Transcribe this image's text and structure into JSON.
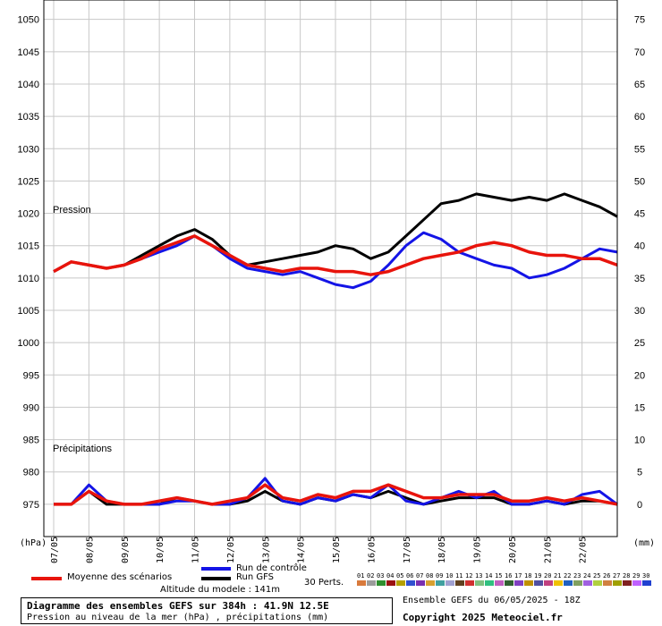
{
  "chart_data": {
    "type": "line",
    "title": "Diagramme des ensembles GEFS sur 384h : 41.9N 12.5E",
    "subtitle": "Pression au niveau de la mer (hPa) , précipitations (mm)",
    "run_info": "Ensemble GEFS du 06/05/2025 - 18Z",
    "copyright": "Copyright 2025 Meteociel.fr",
    "altitude": "Altitude du modele : 141m",
    "ylabel_left": "(hPa)",
    "ylabel_right": "(mm)",
    "label_pressure": "Pression",
    "label_precip": "Précipitations",
    "left_ticks": [
      "975",
      "980",
      "985",
      "990",
      "995",
      "1000",
      "1005",
      "1010",
      "1015",
      "1020",
      "1025",
      "1030",
      "1035",
      "1040",
      "1045",
      "1050"
    ],
    "right_ticks": [
      "0",
      "5",
      "10",
      "15",
      "20",
      "25",
      "30",
      "35",
      "40",
      "45",
      "50",
      "55",
      "60",
      "65",
      "70",
      "75"
    ],
    "xlim_hours": [
      0,
      384
    ],
    "x_dates": [
      "07/05",
      "08/05",
      "09/05",
      "10/05",
      "11/05",
      "12/05",
      "13/05",
      "14/05",
      "15/05",
      "16/05",
      "17/05",
      "18/05",
      "19/05",
      "20/05",
      "21/05",
      "22/05"
    ],
    "grid": true,
    "pressure_range": [
      970,
      1053
    ],
    "precip_range": [
      -5,
      78
    ],
    "series_colors": {
      "mean": "#e8140c",
      "control": "#1414e6",
      "gfs": "#000000"
    },
    "series": [
      {
        "name": "Moyenne des scénarios",
        "kind": "pressure",
        "x": [
          0,
          12,
          24,
          36,
          48,
          60,
          72,
          84,
          96,
          108,
          120,
          132,
          144,
          156,
          168,
          180,
          192,
          204,
          216,
          228,
          240,
          252,
          264,
          276,
          288,
          300,
          312,
          324,
          336,
          348,
          360,
          372,
          384
        ],
        "values": [
          1011,
          1012.5,
          1012,
          1011.5,
          1012,
          1013,
          1014.5,
          1015.5,
          1016.5,
          1015,
          1013.5,
          1012,
          1011.5,
          1011,
          1011.5,
          1011.5,
          1011,
          1011,
          1010.5,
          1011,
          1012,
          1013,
          1013.5,
          1014,
          1015,
          1015.5,
          1015,
          1014,
          1013.5,
          1013.5,
          1013,
          1013,
          1012
        ]
      },
      {
        "name": "Run de contrôle",
        "kind": "pressure",
        "x": [
          0,
          12,
          24,
          36,
          48,
          60,
          72,
          84,
          96,
          108,
          120,
          132,
          144,
          156,
          168,
          180,
          192,
          204,
          216,
          228,
          240,
          252,
          264,
          276,
          288,
          300,
          312,
          324,
          336,
          348,
          360,
          372,
          384
        ],
        "values": [
          1011,
          1012.5,
          1012,
          1011.5,
          1012,
          1013,
          1014,
          1015,
          1016.5,
          1015,
          1013,
          1011.5,
          1011,
          1010.5,
          1011,
          1010,
          1009,
          1008.5,
          1009.5,
          1012,
          1015,
          1017,
          1016,
          1014,
          1013,
          1012,
          1011.5,
          1010,
          1010.5,
          1011.5,
          1013,
          1014.5,
          1014
        ]
      },
      {
        "name": "Run GFS",
        "kind": "pressure",
        "x": [
          0,
          12,
          24,
          36,
          48,
          60,
          72,
          84,
          96,
          108,
          120,
          132,
          144,
          156,
          168,
          180,
          192,
          204,
          216,
          228,
          240,
          252,
          264,
          276,
          288,
          300,
          312,
          324,
          336,
          348,
          360,
          372,
          384
        ],
        "values": [
          1011,
          1012.5,
          1012,
          1011.5,
          1012,
          1013.5,
          1015,
          1016.5,
          1017.5,
          1016,
          1013.5,
          1012,
          1012.5,
          1013,
          1013.5,
          1014,
          1015,
          1014.5,
          1013,
          1014,
          1016.5,
          1019,
          1021.5,
          1022,
          1023,
          1022.5,
          1022,
          1022.5,
          1022,
          1023,
          1022,
          1021,
          1019.5
        ]
      },
      {
        "name": "Moyenne des scénarios",
        "kind": "precip",
        "x": [
          0,
          12,
          24,
          36,
          48,
          60,
          72,
          84,
          96,
          108,
          120,
          132,
          144,
          156,
          168,
          180,
          192,
          204,
          216,
          228,
          240,
          252,
          264,
          276,
          288,
          300,
          312,
          324,
          336,
          348,
          360,
          372,
          384
        ],
        "values": [
          0,
          0,
          2,
          0.5,
          0,
          0,
          0.5,
          1,
          0.5,
          0,
          0.5,
          1,
          3,
          1,
          0.5,
          1.5,
          1,
          2,
          2,
          3,
          2,
          1,
          1,
          1.5,
          1.5,
          1.5,
          0.5,
          0.5,
          1,
          0.5,
          1,
          0.5,
          0
        ]
      },
      {
        "name": "Run de contrôle",
        "kind": "precip",
        "x": [
          0,
          12,
          24,
          36,
          48,
          60,
          72,
          84,
          96,
          108,
          120,
          132,
          144,
          156,
          168,
          180,
          192,
          204,
          216,
          228,
          240,
          252,
          264,
          276,
          288,
          300,
          312,
          324,
          336,
          348,
          360,
          372,
          384
        ],
        "values": [
          0,
          0,
          3,
          0.5,
          0,
          0,
          0,
          0.5,
          0.5,
          0,
          0,
          1,
          4,
          0.5,
          0,
          1,
          0.5,
          1.5,
          1,
          3,
          0.5,
          0,
          1,
          2,
          1,
          2,
          0,
          0,
          0.5,
          0,
          1.5,
          2,
          0
        ]
      },
      {
        "name": "Run GFS",
        "kind": "precip",
        "x": [
          0,
          12,
          24,
          36,
          48,
          60,
          72,
          84,
          96,
          108,
          120,
          132,
          144,
          156,
          168,
          180,
          192,
          204,
          216,
          228,
          240,
          252,
          264,
          276,
          288,
          300,
          312,
          324,
          336,
          348,
          360,
          372,
          384
        ],
        "values": [
          0,
          0,
          2,
          0,
          0,
          0,
          0,
          1,
          0.5,
          0,
          0,
          0.5,
          2,
          0.5,
          0,
          1,
          0.5,
          1.5,
          1,
          2,
          1,
          0,
          0.5,
          1,
          1,
          1,
          0,
          0,
          0.5,
          0,
          0.5,
          0.5,
          0
        ]
      }
    ],
    "legend": {
      "mean": "Moyenne des scénarios",
      "control": "Run de contrôle",
      "gfs": "Run GFS",
      "perts": "30 Perts."
    },
    "pert_numbers": [
      "01",
      "02",
      "03",
      "04",
      "05",
      "06",
      "07",
      "08",
      "09",
      "10",
      "11",
      "12",
      "13",
      "14",
      "15",
      "16",
      "17",
      "18",
      "19",
      "20",
      "21",
      "22",
      "23",
      "24",
      "25",
      "26",
      "27",
      "28",
      "29",
      "30"
    ],
    "pert_colors": [
      "#d87a3c",
      "#9c9c9c",
      "#2f8f2f",
      "#9b1111",
      "#b5a000",
      "#3050d0",
      "#7a2fb0",
      "#d8a030",
      "#40a0a0",
      "#a0a0d0",
      "#604020",
      "#d03030",
      "#80c080",
      "#30c080",
      "#c060c0",
      "#306030",
      "#8040c0",
      "#c09000",
      "#5050a0",
      "#c04080",
      "#f0c000",
      "#2060c0",
      "#80a060",
      "#a060e0",
      "#b0d040",
      "#d08040",
      "#a0a000",
      "#802020",
      "#c060ff",
      "#2040d0"
    ]
  }
}
